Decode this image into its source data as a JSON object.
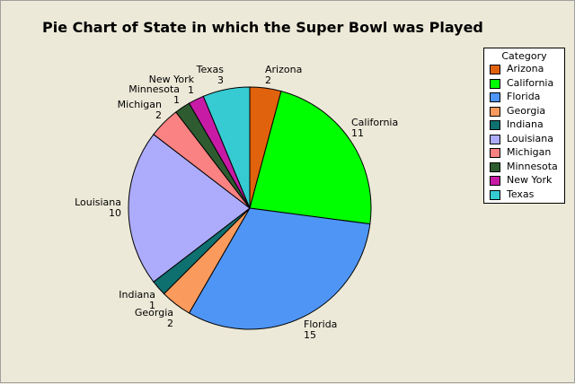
{
  "chart_data": {
    "type": "pie",
    "title": "Pie Chart of State in which the Super Bowl was Played",
    "slices": [
      {
        "label": "Arizona",
        "value": 2,
        "color": "#e0620c"
      },
      {
        "label": "California",
        "value": 11,
        "color": "#00ff00"
      },
      {
        "label": "Florida",
        "value": 15,
        "color": "#4f95f5"
      },
      {
        "label": "Georgia",
        "value": 2,
        "color": "#fa9a5c"
      },
      {
        "label": "Indiana",
        "value": 1,
        "color": "#0f7070"
      },
      {
        "label": "Louisiana",
        "value": 10,
        "color": "#adacfc"
      },
      {
        "label": "Michigan",
        "value": 2,
        "color": "#fa8282"
      },
      {
        "label": "Minnesota",
        "value": 1,
        "color": "#2e5c30"
      },
      {
        "label": "New York",
        "value": 1,
        "color": "#c71ba6"
      },
      {
        "label": "Texas",
        "value": 3,
        "color": "#36cbd2"
      }
    ],
    "legend": {
      "title": "Category",
      "placement": "right"
    }
  }
}
